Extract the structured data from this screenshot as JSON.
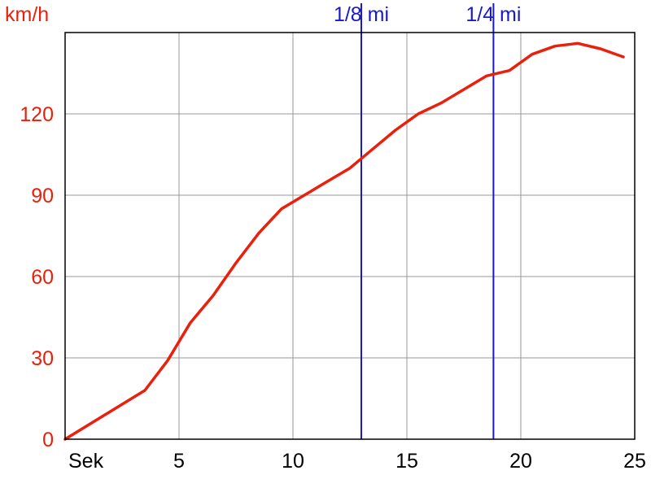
{
  "chart_data": {
    "type": "line",
    "title": "",
    "ylabel": "km/h",
    "xlabel": "Sek",
    "xlim": [
      0,
      25
    ],
    "ylim": [
      0,
      150
    ],
    "x_ticks": [
      5,
      10,
      15,
      20,
      25
    ],
    "y_ticks": [
      0,
      30,
      60,
      90,
      120
    ],
    "grid": true,
    "series": [
      {
        "color": "#e8200c",
        "points": [
          [
            0,
            0
          ],
          [
            3.5,
            18
          ],
          [
            4.5,
            29
          ],
          [
            5.5,
            43
          ],
          [
            6.5,
            53
          ],
          [
            7.5,
            65
          ],
          [
            8.5,
            76
          ],
          [
            9.5,
            85
          ],
          [
            10.5,
            90
          ],
          [
            11.5,
            95
          ],
          [
            12.5,
            100
          ],
          [
            13.5,
            107
          ],
          [
            14.5,
            114
          ],
          [
            15.5,
            120
          ],
          [
            16.5,
            124
          ],
          [
            17.5,
            129
          ],
          [
            18.5,
            134
          ],
          [
            19.5,
            136
          ],
          [
            20.5,
            142
          ],
          [
            21.5,
            145
          ],
          [
            22.5,
            146
          ],
          [
            23.5,
            144
          ],
          [
            24.5,
            141
          ]
        ]
      }
    ],
    "markers": [
      {
        "label": "1/8 mi",
        "x": 13.0,
        "color": "#1a1acc"
      },
      {
        "label": "1/4 mi",
        "x": 18.8,
        "color": "#1a1acc"
      }
    ],
    "colors": {
      "axis_text": "#e8200c",
      "x_tick_text": "#000000",
      "grid": "#999999",
      "frame": "#000000"
    }
  }
}
